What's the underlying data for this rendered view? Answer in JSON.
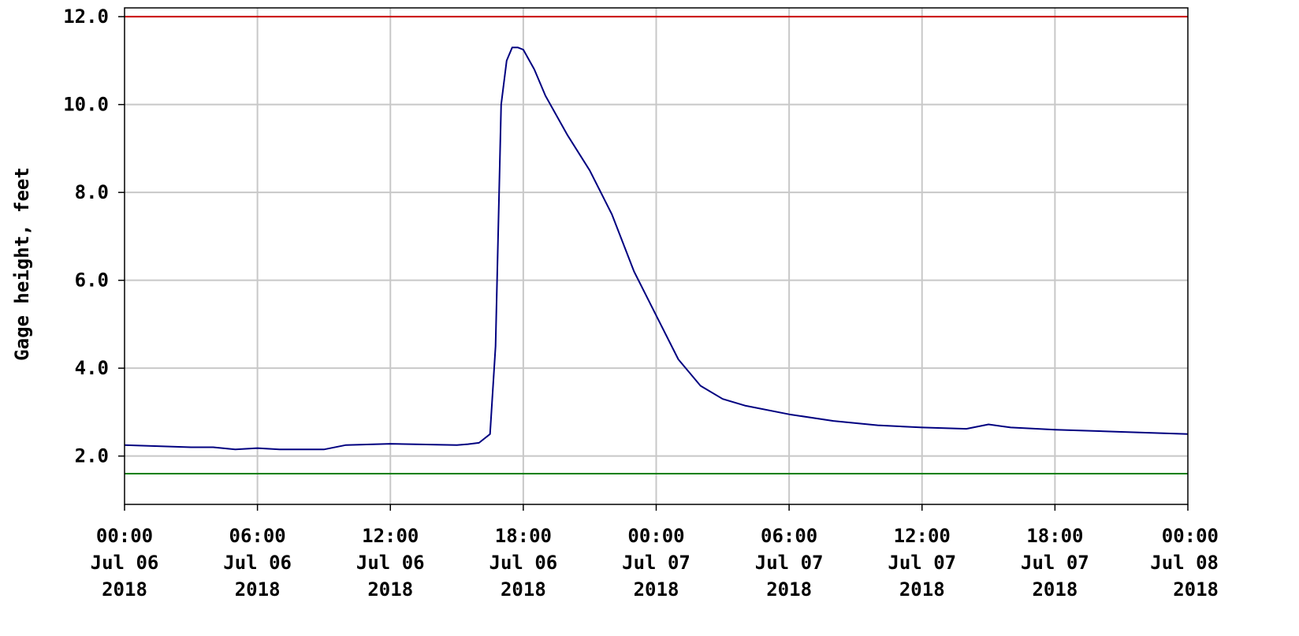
{
  "chart_data": {
    "type": "line",
    "title": "",
    "ylabel": "Gage height, feet",
    "xlabel": "",
    "ylim": [
      0.9,
      12.2
    ],
    "xlim": [
      "2018-07-06 00:00",
      "2018-07-08 00:00"
    ],
    "grid": true,
    "y_ticks": [
      {
        "value": 2.0,
        "label": "2.0"
      },
      {
        "value": 4.0,
        "label": "4.0"
      },
      {
        "value": 6.0,
        "label": "6.0"
      },
      {
        "value": 8.0,
        "label": "8.0"
      },
      {
        "value": 10.0,
        "label": "10.0"
      },
      {
        "value": 12.0,
        "label": "12.0"
      }
    ],
    "x_ticks": [
      {
        "value": "2018-07-06 00:00",
        "time": "00:00",
        "date": "Jul 06",
        "year": "2018"
      },
      {
        "value": "2018-07-06 06:00",
        "time": "06:00",
        "date": "Jul 06",
        "year": "2018"
      },
      {
        "value": "2018-07-06 12:00",
        "time": "12:00",
        "date": "Jul 06",
        "year": "2018"
      },
      {
        "value": "2018-07-06 18:00",
        "time": "18:00",
        "date": "Jul 06",
        "year": "2018"
      },
      {
        "value": "2018-07-07 00:00",
        "time": "00:00",
        "date": "Jul 07",
        "year": "2018"
      },
      {
        "value": "2018-07-07 06:00",
        "time": "06:00",
        "date": "Jul 07",
        "year": "2018"
      },
      {
        "value": "2018-07-07 12:00",
        "time": "12:00",
        "date": "Jul 07",
        "year": "2018"
      },
      {
        "value": "2018-07-07 18:00",
        "time": "18:00",
        "date": "Jul 07",
        "year": "2018"
      },
      {
        "value": "2018-07-08 00:00",
        "time": "00:00",
        "date": "Jul 08",
        "year": "2018"
      }
    ],
    "reference_lines": [
      {
        "y": 12.0,
        "color": "#cc0000"
      },
      {
        "y": 1.6,
        "color": "#008000"
      }
    ],
    "series": [
      {
        "color": "#000080",
        "x": [
          "2018-07-06 00:00",
          "2018-07-06 03:00",
          "2018-07-06 04:00",
          "2018-07-06 05:00",
          "2018-07-06 06:00",
          "2018-07-06 07:00",
          "2018-07-06 09:00",
          "2018-07-06 10:00",
          "2018-07-06 12:00",
          "2018-07-06 15:00",
          "2018-07-06 15:30",
          "2018-07-06 16:00",
          "2018-07-06 16:30",
          "2018-07-06 16:45",
          "2018-07-06 17:00",
          "2018-07-06 17:15",
          "2018-07-06 17:30",
          "2018-07-06 17:45",
          "2018-07-06 18:00",
          "2018-07-06 18:30",
          "2018-07-06 19:00",
          "2018-07-06 20:00",
          "2018-07-06 21:00",
          "2018-07-06 22:00",
          "2018-07-06 23:00",
          "2018-07-07 00:00",
          "2018-07-07 01:00",
          "2018-07-07 02:00",
          "2018-07-07 03:00",
          "2018-07-07 04:00",
          "2018-07-07 06:00",
          "2018-07-07 08:00",
          "2018-07-07 10:00",
          "2018-07-07 12:00",
          "2018-07-07 14:00",
          "2018-07-07 15:00",
          "2018-07-07 16:00",
          "2018-07-07 18:00",
          "2018-07-07 21:00",
          "2018-07-08 00:00"
        ],
        "y": [
          2.25,
          2.2,
          2.2,
          2.15,
          2.18,
          2.15,
          2.15,
          2.25,
          2.28,
          2.25,
          2.27,
          2.3,
          2.5,
          4.5,
          10.0,
          11.0,
          11.3,
          11.3,
          11.25,
          10.8,
          10.2,
          9.3,
          8.5,
          7.5,
          6.2,
          5.2,
          4.2,
          3.6,
          3.3,
          3.15,
          2.95,
          2.8,
          2.7,
          2.65,
          2.62,
          2.72,
          2.65,
          2.6,
          2.55,
          2.5
        ]
      }
    ]
  }
}
